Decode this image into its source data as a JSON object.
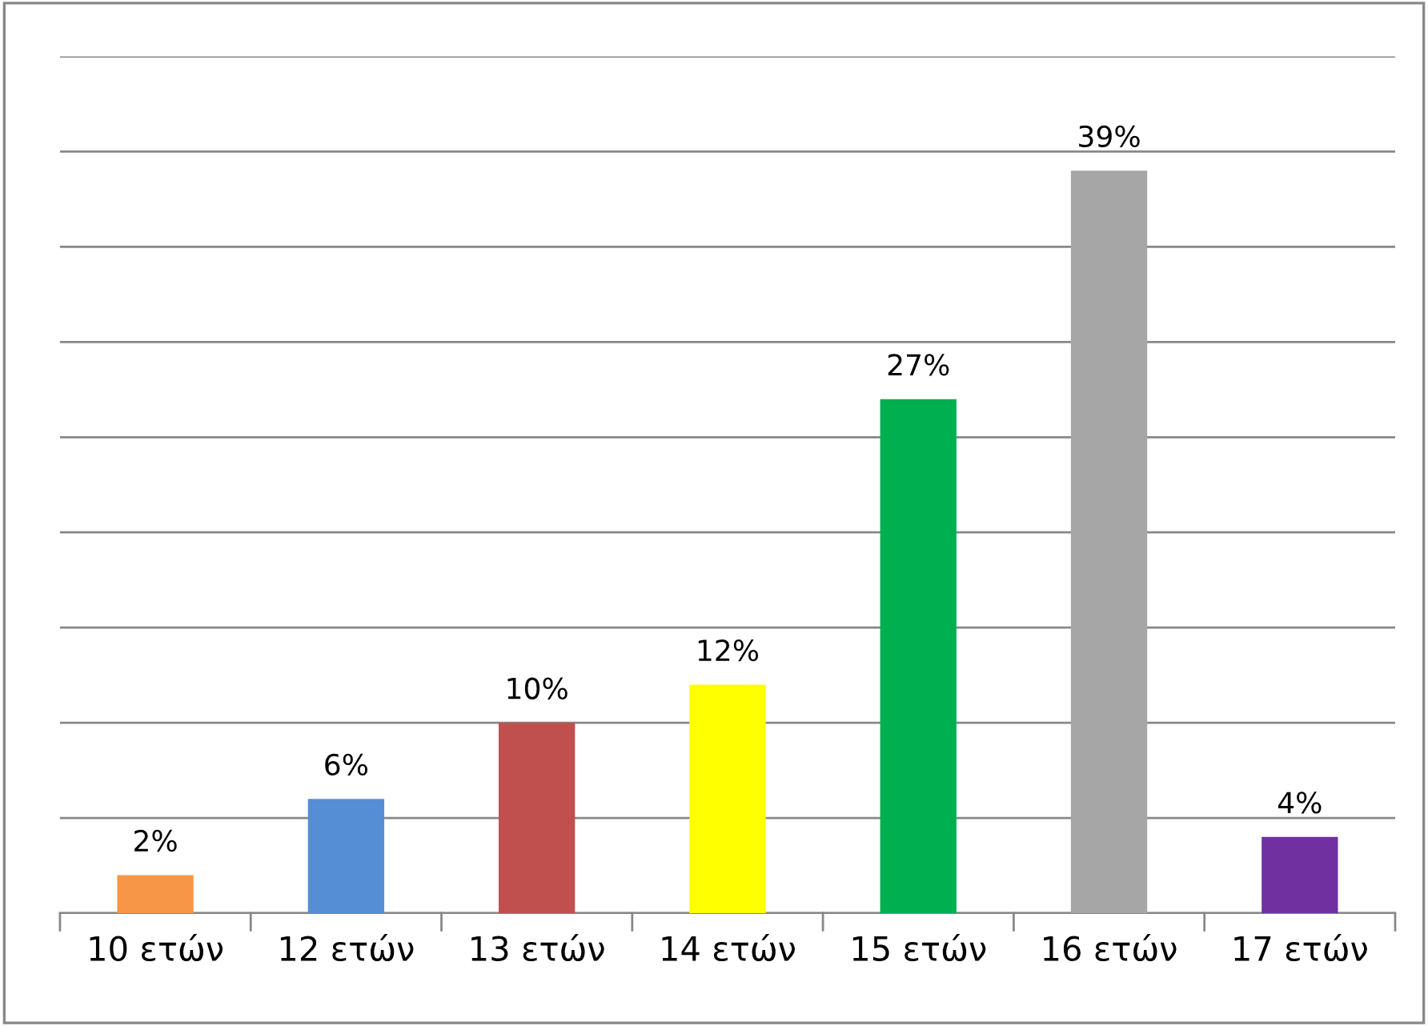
{
  "chart_data": {
    "type": "bar",
    "categories": [
      "10 ετών",
      "12 ετών",
      "13 ετών",
      "14 ετών",
      "15 ετών",
      "16 ετών",
      "17 ετών"
    ],
    "values": [
      2,
      6,
      10,
      12,
      27,
      39,
      4
    ],
    "colors": [
      "#f79646",
      "#558ed5",
      "#c0504d",
      "#ffff00",
      "#00b050",
      "#a6a6a6",
      "#7030a0"
    ],
    "ylim": [
      0,
      45
    ],
    "yticks": [
      {
        "value": 0,
        "label": null
      },
      {
        "value": 5,
        "label": null
      },
      {
        "value": 10,
        "label": null
      },
      {
        "value": 15,
        "label": null
      },
      {
        "value": 20,
        "label": null
      },
      {
        "value": 25,
        "label": null
      },
      {
        "value": 30,
        "label": null
      },
      {
        "value": 35,
        "label": null
      },
      {
        "value": 40,
        "label": null
      },
      {
        "value": 45,
        "label": null
      }
    ],
    "value_labels": [
      "2%",
      "6%",
      "10%",
      "12%",
      "27%",
      "39%",
      "4%"
    ],
    "grid": "y",
    "tick_labels": "x"
  }
}
